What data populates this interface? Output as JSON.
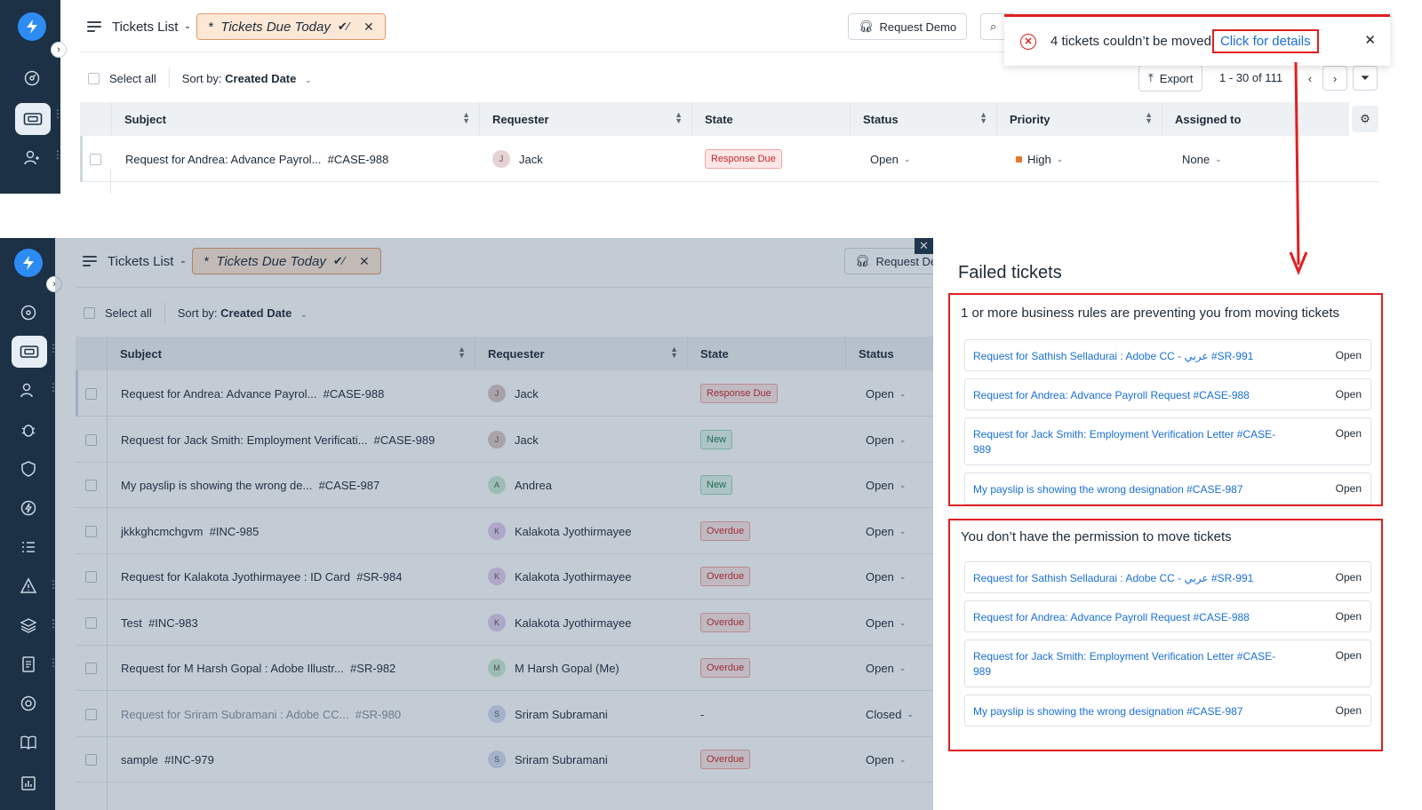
{
  "header": {
    "title": "Tickets List",
    "separator": "-",
    "view_star": "*",
    "view_name": "Tickets Due Today",
    "view_close": "✕",
    "request_demo": "Request Demo",
    "request_demo_clipped": "Request De"
  },
  "toolbar": {
    "select_all": "Select all",
    "sort_prefix": "Sort by:",
    "sort_value": "Created Date",
    "export": "Export",
    "pagination": "1 - 30 of 111"
  },
  "columns": {
    "subject": "Subject",
    "requester": "Requester",
    "state": "State",
    "status": "Status",
    "priority": "Priority",
    "assigned_to": "Assigned to"
  },
  "top_row": {
    "subject": "Request for Andrea: Advance Payrol...",
    "id": "#CASE-988",
    "requester": "Jack",
    "requester_initial": "J",
    "state": "Response Due",
    "status": "Open",
    "priority": "High",
    "assigned_to": "None"
  },
  "rows": [
    {
      "subject": "Request for Andrea: Advance Payrol...",
      "id": "#CASE-988",
      "initial": "J",
      "requester": "Jack",
      "state": "Response Due",
      "state_kind": "resp",
      "status": "Open",
      "avatar_color": "#d9c6c6"
    },
    {
      "subject": "Request for Jack Smith: Employment Verificati...",
      "id": "#CASE-989",
      "initial": "J",
      "requester": "Jack",
      "state": "New",
      "state_kind": "new",
      "status": "Open",
      "avatar_color": "#d9c6c6"
    },
    {
      "subject": "My payslip is showing the wrong de...",
      "id": "#CASE-987",
      "initial": "A",
      "requester": "Andrea",
      "state": "New",
      "state_kind": "new",
      "status": "Open",
      "avatar_color": "#c9ecd4"
    },
    {
      "subject": "jkkkghcmchgvm",
      "id": "#INC-985",
      "initial": "K",
      "requester": "Kalakota Jyothirmayee",
      "state": "Overdue",
      "state_kind": "over",
      "status": "Open",
      "avatar_color": "#e3cdf0"
    },
    {
      "subject": "Request for Kalakota Jyothirmayee : ID Card",
      "id": "#SR-984",
      "initial": "K",
      "requester": "Kalakota Jyothirmayee",
      "state": "Overdue",
      "state_kind": "over",
      "status": "Open",
      "avatar_color": "#e3cdf0"
    },
    {
      "subject": "Test",
      "id": "#INC-983",
      "initial": "K",
      "requester": "Kalakota Jyothirmayee",
      "state": "Overdue",
      "state_kind": "over",
      "status": "Open",
      "avatar_color": "#e3cdf0"
    },
    {
      "subject": "Request for M Harsh Gopal : Adobe Illustr...",
      "id": "#SR-982",
      "initial": "M",
      "requester": "M Harsh Gopal (Me)",
      "state": "Overdue",
      "state_kind": "over",
      "status": "Open",
      "avatar_color": "#c9ecd4"
    },
    {
      "subject": "Request for Sriram Subramani : Adobe CC...",
      "id": "#SR-980",
      "initial": "S",
      "requester": "Sriram Subramani",
      "state": "-",
      "state_kind": "none",
      "status": "Closed",
      "avatar_color": "#d4dcf3"
    },
    {
      "subject": "sample",
      "id": "#INC-979",
      "initial": "S",
      "requester": "Sriram Subramani",
      "state": "Overdue",
      "state_kind": "over",
      "status": "Open",
      "avatar_color": "#d4dcf3"
    }
  ],
  "toast": {
    "message": "4 tickets couldn’t be moved",
    "link": "Click for details",
    "close": "✕"
  },
  "failed_panel": {
    "title": "Failed tickets",
    "groups": [
      {
        "title": "1 or more business rules are preventing you from moving tickets",
        "tickets": [
          {
            "label": "Request for Sathish Selladurai : Adobe CC - عربي #SR-991",
            "status": "Open"
          },
          {
            "label": "Request for Andrea: Advance Payroll Request #CASE-988",
            "status": "Open"
          },
          {
            "label": "Request for Jack Smith: Employment Verification Letter #CASE-989",
            "status": "Open"
          },
          {
            "label": "My payslip is showing the wrong designation #CASE-987",
            "status": "Open"
          }
        ]
      },
      {
        "title": "You don’t have the permission to move tickets",
        "tickets": [
          {
            "label": "Request for Sathish Selladurai : Adobe CC - عربي #SR-991",
            "status": "Open"
          },
          {
            "label": "Request for Andrea: Advance Payroll Request #CASE-988",
            "status": "Open"
          },
          {
            "label": "Request for Jack Smith: Employment Verification Letter #CASE-989",
            "status": "Open"
          },
          {
            "label": "My payslip is showing the wrong designation #CASE-987",
            "status": "Open"
          }
        ]
      }
    ]
  },
  "colors": {
    "sidebar": "#1c3145",
    "accent_link": "#1a6fd8",
    "alert_red": "#e02020",
    "view_pill_bg": "#fde8d7",
    "priority_high": "#e8762b"
  }
}
